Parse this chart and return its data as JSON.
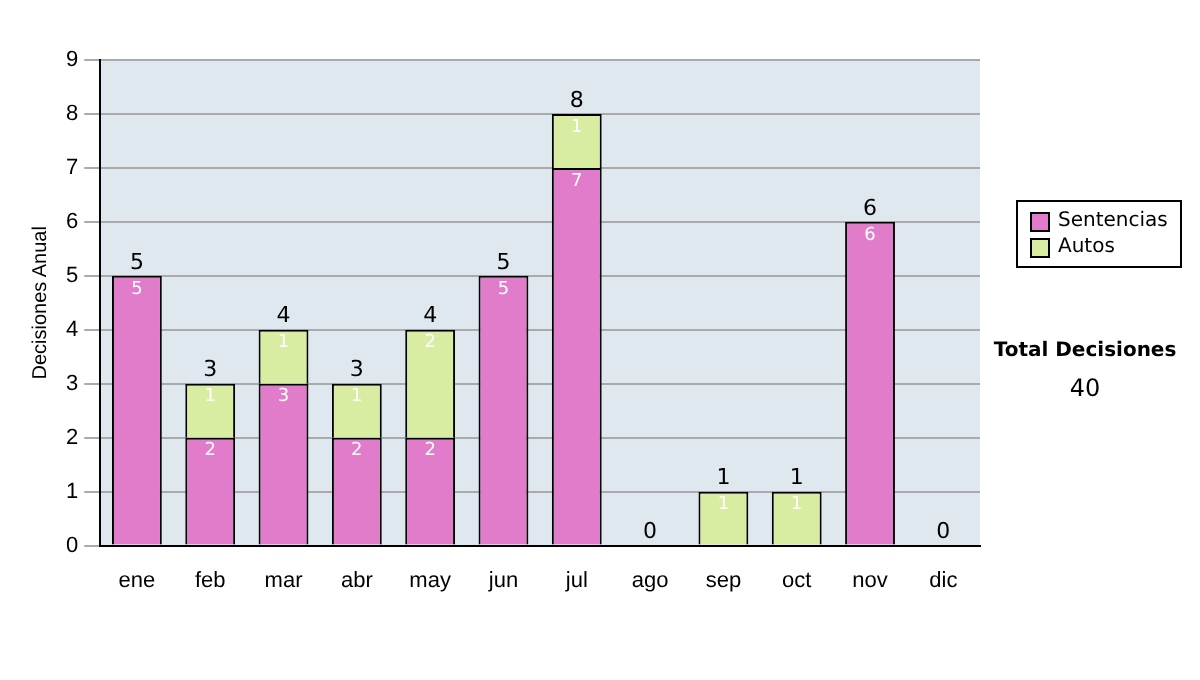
{
  "chart_data": {
    "type": "bar",
    "stacked": true,
    "ylabel": "Decisiones Anual",
    "categories": [
      "ene",
      "feb",
      "mar",
      "abr",
      "may",
      "jun",
      "jul",
      "ago",
      "sep",
      "oct",
      "nov",
      "dic"
    ],
    "series": [
      {
        "name": "Sentencias",
        "color": "#e07cc9",
        "values": [
          5,
          2,
          3,
          2,
          2,
          5,
          7,
          0,
          0,
          0,
          6,
          0
        ],
        "value_labels": [
          "5",
          "2",
          "3",
          "2",
          "2",
          "5",
          "7",
          null,
          null,
          null,
          "6",
          null
        ]
      },
      {
        "name": "Autos",
        "color": "#d9eda2",
        "values": [
          0,
          1,
          1,
          1,
          2,
          0,
          1,
          0,
          1,
          1,
          0,
          0
        ],
        "value_labels": [
          null,
          "1",
          "1",
          "1",
          "2",
          null,
          "1",
          null,
          "1",
          "1",
          null,
          null
        ]
      }
    ],
    "totals": [
      "5",
      "3",
      "4",
      "3",
      "4",
      "5",
      "8",
      "0",
      "1",
      "1",
      "6",
      "0"
    ],
    "ylim": [
      0,
      9
    ],
    "yticks": [
      0,
      1,
      2,
      3,
      4,
      5,
      6,
      7,
      8,
      9
    ],
    "grid": "y",
    "legend": "right",
    "annotations": [
      "Total Decisiones",
      "40"
    ]
  }
}
